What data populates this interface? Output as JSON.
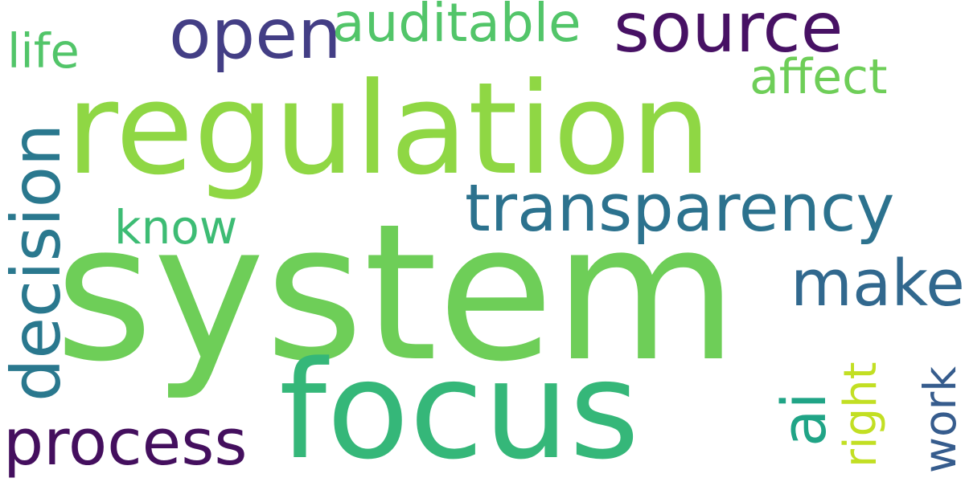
{
  "words": [
    {
      "id": "regulation",
      "text": "regulation",
      "color": "#8fd744"
    },
    {
      "id": "system",
      "text": "system",
      "color": "#6ece58"
    },
    {
      "id": "focus",
      "text": "focus",
      "color": "#35b779"
    },
    {
      "id": "source",
      "text": "source",
      "color": "#471164"
    },
    {
      "id": "open",
      "text": "open",
      "color": "#433e85"
    },
    {
      "id": "auditable",
      "text": "auditable",
      "color": "#52c569"
    },
    {
      "id": "life",
      "text": "life",
      "color": "#52c569"
    },
    {
      "id": "affect",
      "text": "affect",
      "color": "#6ece58"
    },
    {
      "id": "decision",
      "text": "decision",
      "color": "#2a788e"
    },
    {
      "id": "transparency",
      "text": "transparency",
      "color": "#2c728e"
    },
    {
      "id": "know",
      "text": "know",
      "color": "#3dbc74"
    },
    {
      "id": "make",
      "text": "make",
      "color": "#31688e"
    },
    {
      "id": "process",
      "text": "process",
      "color": "#440f5e"
    },
    {
      "id": "ai",
      "text": "ai",
      "color": "#20a486"
    },
    {
      "id": "right",
      "text": "right",
      "color": "#c2df23"
    },
    {
      "id": "work",
      "text": "work",
      "color": "#365c8d"
    }
  ]
}
